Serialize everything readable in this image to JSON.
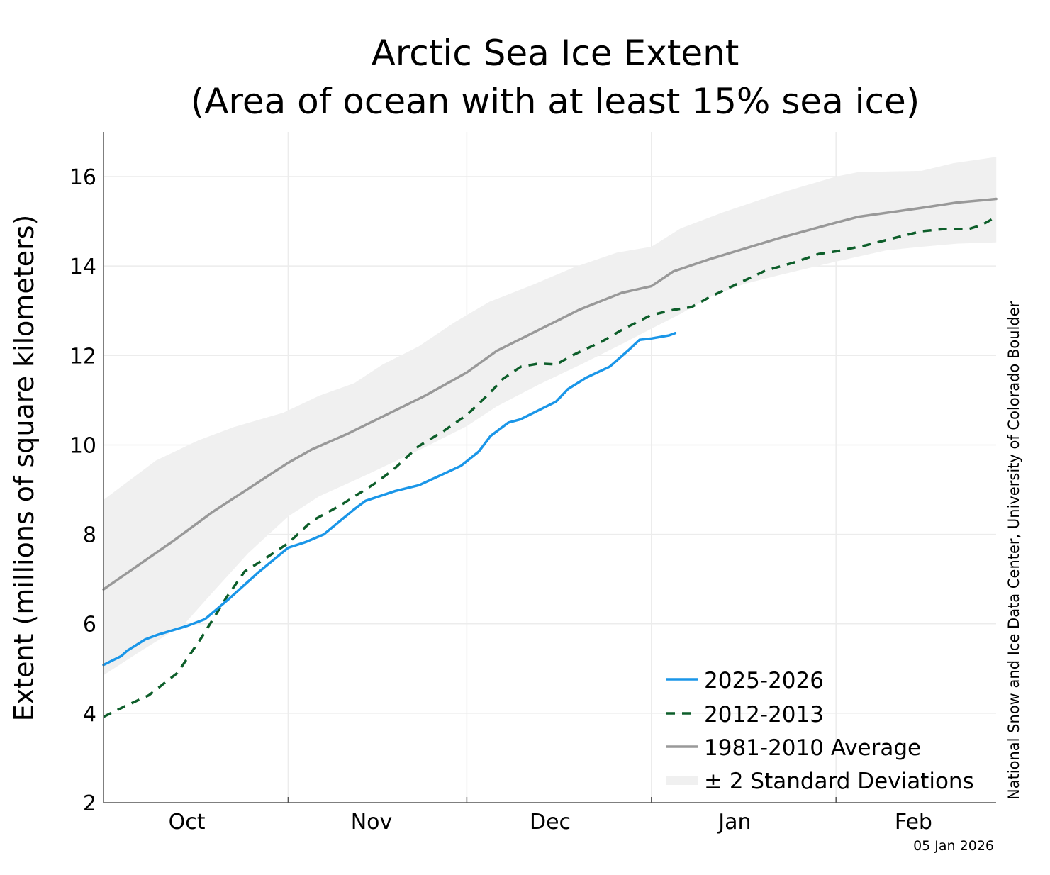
{
  "chart_data": {
    "type": "line",
    "title": "Arctic Sea Ice Extent",
    "subtitle": "(Area of ocean with at least 15% sea ice)",
    "xlabel": "",
    "ylabel": "Extent (millions of square kilometers)",
    "x_unit": "days since Oct 1",
    "xlim": [
      0,
      150
    ],
    "ylim": [
      2,
      17
    ],
    "yticks": [
      2,
      4,
      6,
      8,
      10,
      12,
      14,
      16
    ],
    "ytick_labels": [
      "2",
      "4",
      "6",
      "8",
      "10",
      "12",
      "14",
      "16"
    ],
    "month_boundaries": [
      31,
      61,
      92,
      123
    ],
    "month_labels": [
      {
        "label": "Oct",
        "center_day": 14
      },
      {
        "label": "Nov",
        "center_day": 45
      },
      {
        "label": "Dec",
        "center_day": 75
      },
      {
        "label": "Jan",
        "center_day": 106
      },
      {
        "label": "Feb",
        "center_day": 136
      }
    ],
    "grid": true,
    "legend_position": "bottom-right",
    "series": [
      {
        "name": "2025-2026",
        "style": "solid",
        "color": "#1a96e8",
        "x": [
          0,
          3,
          4,
          7,
          9,
          14,
          17,
          21,
          26,
          31,
          34,
          37,
          42,
          44,
          49,
          53,
          60,
          63,
          65,
          68,
          70,
          76,
          78,
          81,
          85,
          88,
          90,
          92,
          95,
          96
        ],
        "y": [
          5.08,
          5.28,
          5.4,
          5.65,
          5.75,
          5.95,
          6.1,
          6.55,
          7.15,
          7.7,
          7.83,
          8.0,
          8.55,
          8.75,
          8.97,
          9.1,
          9.53,
          9.85,
          10.2,
          10.5,
          10.57,
          10.97,
          11.25,
          11.5,
          11.75,
          12.1,
          12.35,
          12.38,
          12.45,
          12.5
        ]
      },
      {
        "name": "2012-2013",
        "style": "dashed",
        "color": "#0d5e2a",
        "x": [
          0,
          3.5,
          7.6,
          12.4,
          16.5,
          20.7,
          23.7,
          26.7,
          31,
          35,
          39.8,
          45.7,
          48.7,
          52.9,
          57,
          61,
          64.8,
          67.1,
          70.1,
          73.1,
          76,
          79,
          83.8,
          87.4,
          91.9,
          95.7,
          98.7,
          101.7,
          106.4,
          111.2,
          116,
          120.1,
          123.1,
          127.9,
          132.6,
          137.4,
          141.5,
          145.1,
          147.5,
          149.9
        ],
        "y": [
          3.92,
          4.15,
          4.4,
          4.9,
          5.7,
          6.6,
          7.17,
          7.42,
          7.8,
          8.3,
          8.65,
          9.15,
          9.45,
          9.97,
          10.3,
          10.67,
          11.15,
          11.48,
          11.75,
          11.82,
          11.8,
          12.02,
          12.32,
          12.6,
          12.9,
          13.02,
          13.08,
          13.3,
          13.6,
          13.9,
          14.08,
          14.27,
          14.33,
          14.46,
          14.62,
          14.78,
          14.83,
          14.82,
          14.92,
          15.1
        ]
      },
      {
        "name": "1981-2010 Average",
        "style": "solid",
        "color": "#999999",
        "x": [
          0,
          11.9,
          18.3,
          31,
          35,
          41,
          54,
          61,
          66,
          72,
          80,
          87,
          92,
          95.7,
          101.7,
          113.6,
          123,
          126.7,
          137.4,
          143.3,
          149.9
        ],
        "y": [
          6.77,
          7.87,
          8.5,
          9.6,
          9.9,
          10.25,
          11.1,
          11.62,
          12.1,
          12.5,
          13.03,
          13.4,
          13.55,
          13.88,
          14.15,
          14.63,
          14.97,
          15.1,
          15.3,
          15.42,
          15.5
        ]
      }
    ],
    "band": {
      "name": "± 2 Standard Deviations",
      "color": "#f0f0f0",
      "upper": {
        "x": [
          0,
          4,
          8.8,
          15.9,
          21.9,
          30.2,
          36.2,
          42.1,
          46.9,
          52.9,
          58.8,
          64.8,
          71.9,
          79,
          86.2,
          92,
          96.9,
          104,
          113.6,
          123,
          126.7,
          137.4,
          142.7,
          149.9
        ],
        "y": [
          8.77,
          9.17,
          9.65,
          10.1,
          10.4,
          10.72,
          11.1,
          11.38,
          11.8,
          12.2,
          12.73,
          13.2,
          13.57,
          13.97,
          14.3,
          14.43,
          14.84,
          15.2,
          15.63,
          16.0,
          16.1,
          16.13,
          16.3,
          16.44
        ]
      },
      "lower": {
        "x": [
          0,
          6.4,
          13.6,
          18.3,
          24.3,
          31,
          36.2,
          44.5,
          54,
          61,
          66,
          73.1,
          80.2,
          87.4,
          92,
          96.9,
          101.7,
          107.6,
          113.6,
          123,
          131.4,
          137.4,
          143.3,
          149.9
        ],
        "y": [
          4.85,
          5.4,
          6.0,
          6.7,
          7.58,
          8.4,
          8.85,
          9.35,
          9.95,
          10.42,
          10.86,
          11.35,
          11.8,
          12.28,
          12.6,
          12.93,
          13.3,
          13.6,
          13.8,
          14.1,
          14.35,
          14.43,
          14.5,
          14.53
        ]
      }
    },
    "credit": "National Snow and Ice Data Center, University of Colorado Boulder",
    "date_stamp": "05 Jan 2026"
  }
}
